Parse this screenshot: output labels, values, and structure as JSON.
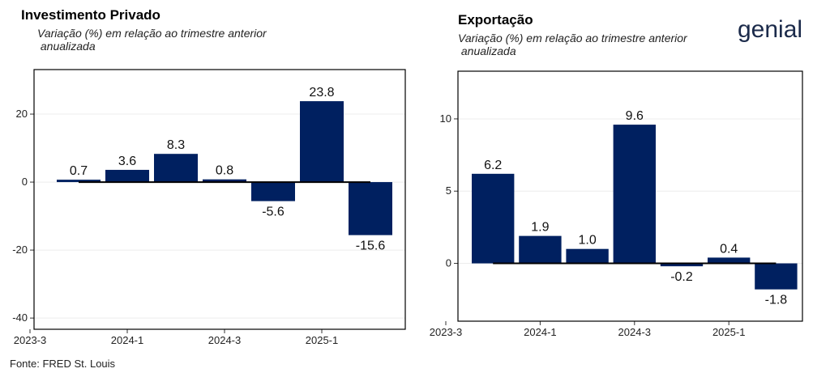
{
  "logo": "genial",
  "source": "Fonte: FRED St. Louis",
  "chart_data": [
    {
      "type": "bar",
      "title": "Investimento Privado",
      "subtitle": [
        "Variação (%) em relação ao trimestre anterior",
        " anualizada"
      ],
      "categories": [
        "2023-3",
        null,
        "2024-1",
        null,
        "2024-3",
        null,
        "2025-1",
        null
      ],
      "values": [
        null,
        0.7,
        3.6,
        8.3,
        0.8,
        -5.6,
        23.8,
        -15.6
      ],
      "value_labels": [
        null,
        "0.7",
        "3.6",
        "8.3",
        "0.8",
        "-5.6",
        "23.8",
        "-15.6"
      ],
      "color": "#002060",
      "ylim": [
        -43.3,
        33.1
      ],
      "yticks": [
        -40,
        -20,
        0,
        20
      ],
      "grid": true
    },
    {
      "type": "bar",
      "title": "Exportação",
      "subtitle": [
        "Variação (%) em relação ao trimestre anterior",
        " anualizada"
      ],
      "categories": [
        "2023-3",
        null,
        "2024-1",
        null,
        "2024-3",
        null,
        "2025-1",
        null
      ],
      "values": [
        null,
        6.2,
        1.9,
        1.0,
        9.6,
        -0.2,
        0.4,
        -1.8
      ],
      "value_labels": [
        null,
        "6.2",
        "1.9",
        "1.0",
        "9.6",
        "-0.2",
        "0.4",
        "-1.8"
      ],
      "color": "#002060",
      "ylim": [
        -4.0,
        13.3
      ],
      "yticks": [
        0,
        5,
        10
      ],
      "grid": true
    }
  ]
}
